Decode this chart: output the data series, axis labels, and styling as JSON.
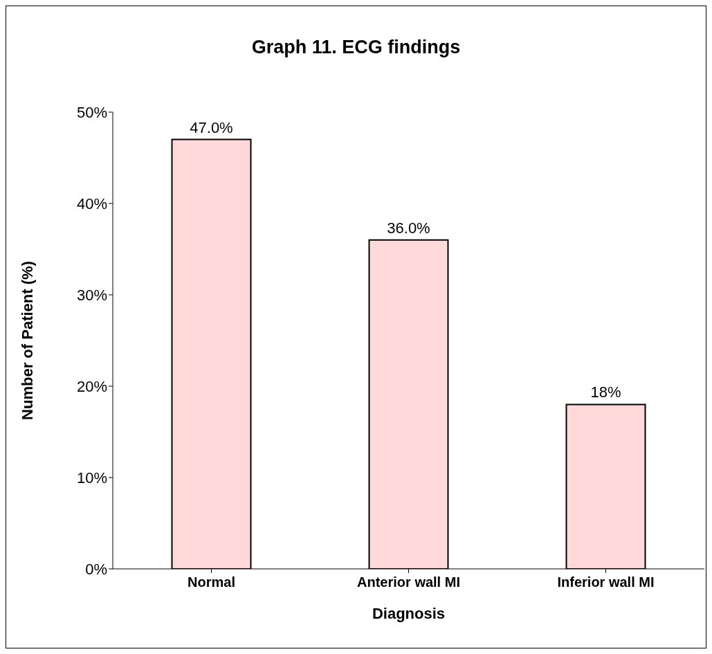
{
  "chart_data": {
    "type": "bar",
    "title": "Graph 11. ECG findings",
    "xlabel": "Diagnosis",
    "ylabel": "Number of Patient (%)",
    "categories": [
      "Normal",
      "Anterior wall MI",
      "Inferior wall MI"
    ],
    "values": [
      47,
      36,
      18
    ],
    "value_labels": [
      "47.0%",
      "36.0%",
      "18%"
    ],
    "color": "#ffd9d9",
    "ylim": [
      0,
      50
    ],
    "yticks": [
      {
        "value": 0,
        "label": "0%"
      },
      {
        "value": 10,
        "label": "10%"
      },
      {
        "value": 20,
        "label": "20%"
      },
      {
        "value": 30,
        "label": "30%"
      },
      {
        "value": 40,
        "label": "40%"
      },
      {
        "value": 50,
        "label": "50%"
      }
    ]
  }
}
